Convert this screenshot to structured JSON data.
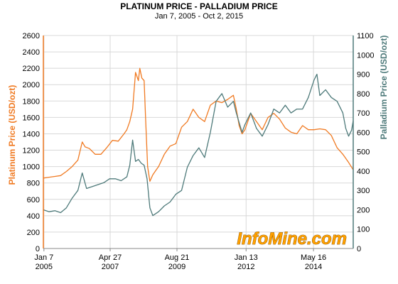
{
  "chart_data": {
    "type": "line",
    "title": "PLATINUM PRICE  -  PALLADIUM PRICE",
    "subtitle": "Jan 7, 2005 - Oct 2, 2015",
    "ylabel_left": "Platinum Price (USD/ozt)",
    "ylabel_right": "Palladium Price (USD/ozt)",
    "ylim_left": [
      0,
      2600
    ],
    "ylim_right": [
      0,
      1100
    ],
    "yticks_left": [
      0,
      200,
      400,
      600,
      800,
      1000,
      1200,
      1400,
      1600,
      1800,
      2000,
      2200,
      2400,
      2600
    ],
    "yticks_right": [
      0,
      100,
      200,
      300,
      400,
      500,
      600,
      700,
      800,
      900,
      1000,
      1100
    ],
    "xlim": [
      2005.0,
      2015.76
    ],
    "xticks": [
      {
        "pos": 2005.02,
        "line1": "Jan 7",
        "line2": "2005"
      },
      {
        "pos": 2007.32,
        "line1": "Apr 27",
        "line2": "2007"
      },
      {
        "pos": 2009.64,
        "line1": "Aug 21",
        "line2": "2009"
      },
      {
        "pos": 2012.04,
        "line1": "Jan 13",
        "line2": "2012"
      },
      {
        "pos": 2014.38,
        "line1": "May 16",
        "line2": "2014"
      }
    ],
    "grid": true,
    "colors": {
      "platinum": "#F07A22",
      "palladium": "#4E7A7A",
      "grid": "#d8d8d8",
      "axis": "#888888",
      "watermark_fill": "#FFA000",
      "watermark_stroke": "#7A4A00"
    },
    "watermark": "InfoMine.com",
    "series": [
      {
        "name": "Platinum Price (USD/ozt)",
        "axis": "left",
        "x": [
          2005.0,
          2005.2,
          2005.4,
          2005.6,
          2005.8,
          2006.0,
          2006.2,
          2006.35,
          2006.45,
          2006.6,
          2006.8,
          2007.0,
          2007.2,
          2007.4,
          2007.6,
          2007.8,
          2007.9,
          2008.0,
          2008.1,
          2008.2,
          2008.3,
          2008.35,
          2008.42,
          2008.5,
          2008.55,
          2008.62,
          2008.7,
          2008.8,
          2008.9,
          2009.0,
          2009.2,
          2009.4,
          2009.6,
          2009.8,
          2010.0,
          2010.2,
          2010.4,
          2010.6,
          2010.8,
          2011.0,
          2011.2,
          2011.4,
          2011.6,
          2011.7,
          2011.8,
          2011.9,
          2012.0,
          2012.2,
          2012.4,
          2012.6,
          2012.8,
          2013.0,
          2013.2,
          2013.4,
          2013.6,
          2013.8,
          2014.0,
          2014.2,
          2014.4,
          2014.6,
          2014.8,
          2015.0,
          2015.2,
          2015.4,
          2015.6,
          2015.76
        ],
        "y": [
          860,
          870,
          880,
          890,
          940,
          1000,
          1080,
          1300,
          1240,
          1220,
          1150,
          1150,
          1230,
          1320,
          1310,
          1400,
          1450,
          1550,
          1700,
          2150,
          2050,
          2200,
          2080,
          2050,
          1600,
          1000,
          820,
          900,
          950,
          1000,
          1150,
          1250,
          1280,
          1480,
          1550,
          1700,
          1600,
          1550,
          1750,
          1800,
          1780,
          1820,
          1870,
          1700,
          1500,
          1400,
          1450,
          1650,
          1550,
          1450,
          1600,
          1650,
          1580,
          1470,
          1420,
          1400,
          1500,
          1450,
          1450,
          1460,
          1450,
          1380,
          1230,
          1150,
          1050,
          960
        ]
      },
      {
        "name": "Palladium Price (USD/ozt)",
        "axis": "right",
        "x": [
          2005.0,
          2005.2,
          2005.4,
          2005.6,
          2005.8,
          2006.0,
          2006.2,
          2006.35,
          2006.5,
          2006.7,
          2006.9,
          2007.1,
          2007.3,
          2007.5,
          2007.7,
          2007.9,
          2008.0,
          2008.1,
          2008.2,
          2008.3,
          2008.4,
          2008.5,
          2008.6,
          2008.7,
          2008.8,
          2008.9,
          2009.0,
          2009.2,
          2009.4,
          2009.6,
          2009.8,
          2010.0,
          2010.2,
          2010.4,
          2010.6,
          2010.8,
          2011.0,
          2011.2,
          2011.4,
          2011.6,
          2011.7,
          2011.8,
          2011.9,
          2012.0,
          2012.2,
          2012.4,
          2012.6,
          2012.8,
          2013.0,
          2013.2,
          2013.4,
          2013.6,
          2013.8,
          2014.0,
          2014.2,
          2014.4,
          2014.5,
          2014.6,
          2014.8,
          2015.0,
          2015.2,
          2015.4,
          2015.5,
          2015.6,
          2015.7,
          2015.76
        ],
        "y": [
          200,
          190,
          195,
          185,
          210,
          260,
          300,
          390,
          310,
          320,
          330,
          340,
          360,
          360,
          350,
          370,
          430,
          560,
          450,
          460,
          440,
          430,
          360,
          210,
          170,
          180,
          190,
          220,
          240,
          280,
          300,
          420,
          480,
          520,
          470,
          600,
          760,
          800,
          730,
          760,
          700,
          650,
          600,
          640,
          700,
          620,
          580,
          640,
          720,
          700,
          740,
          700,
          720,
          720,
          780,
          870,
          900,
          790,
          820,
          780,
          760,
          700,
          620,
          580,
          610,
          660
        ]
      }
    ]
  }
}
